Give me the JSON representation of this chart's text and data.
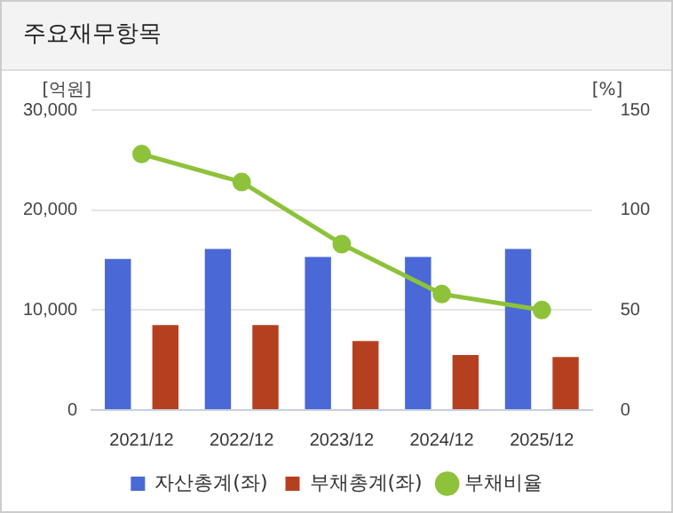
{
  "chart_data": {
    "type": "bar",
    "title": "주요재무항목",
    "ylabel": "[억원]",
    "y2label": "[%]",
    "categories": [
      "2021/12",
      "2022/12",
      "2023/12",
      "2024/12",
      "2025/12"
    ],
    "series": [
      {
        "name": "자산총계(좌)",
        "color": "#4a69d6",
        "values": [
          15100,
          16100,
          15300,
          15300,
          16100
        ]
      },
      {
        "name": "부채총계(좌)",
        "color": "#b5401f",
        "values": [
          8500,
          8500,
          6900,
          5500,
          5300
        ]
      },
      {
        "name": "부채비율",
        "type": "line",
        "axis": "y2",
        "color": "#8dc23a",
        "values": [
          128,
          114,
          83,
          58,
          50
        ]
      }
    ],
    "ylim": [
      0,
      30000
    ],
    "yticks": [
      0,
      {
        "value": 10000,
        "label": "10,000"
      },
      {
        "value": 20000,
        "label": "20,000"
      },
      {
        "value": 30000,
        "label": "30,000"
      }
    ],
    "y2lim": [
      0,
      150
    ],
    "y2ticks": [
      0,
      50,
      100,
      150
    ],
    "grid": "y",
    "legend": "bottom",
    "marker": "circle"
  }
}
